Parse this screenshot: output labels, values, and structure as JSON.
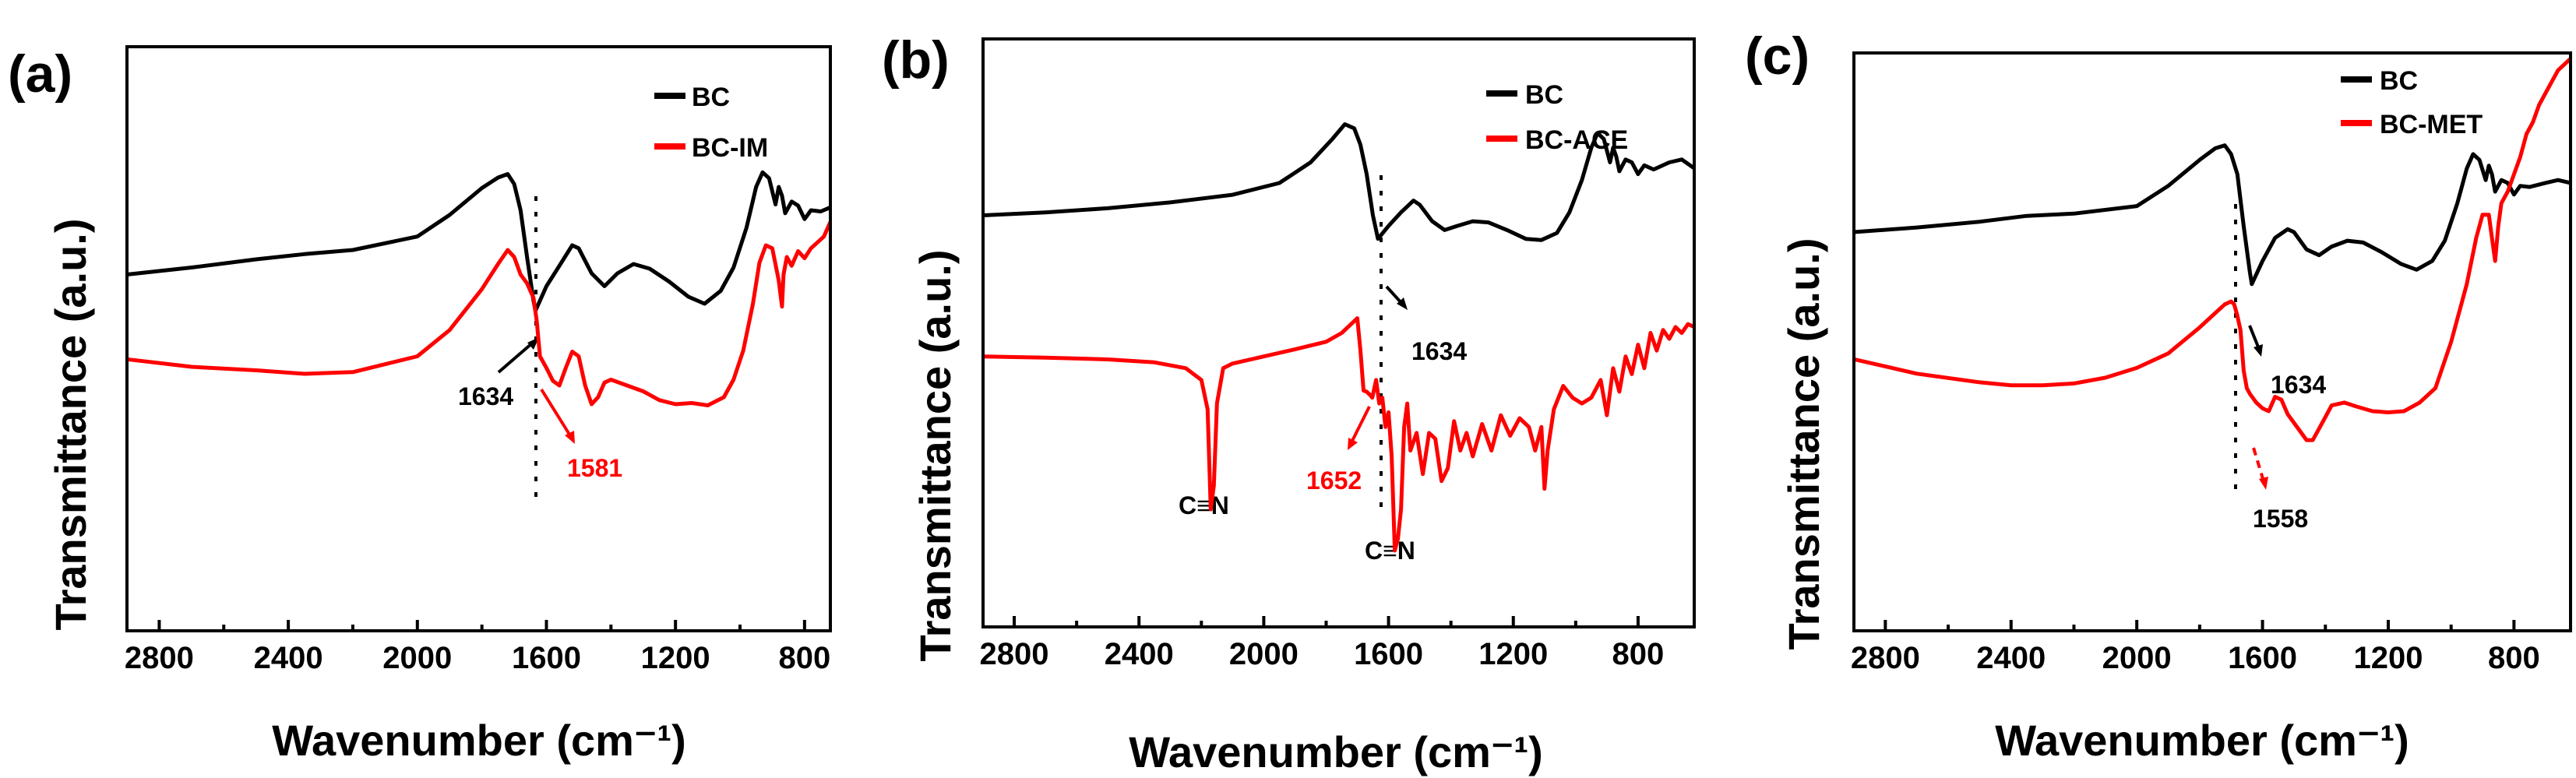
{
  "chart_data": [
    {
      "type": "line",
      "panel_label": "(a)",
      "xlabel": "Wavenumber (cm⁻¹)",
      "ylabel": "Transmittance (a.u.)",
      "xlim": [
        2900,
        720
      ],
      "ylim": [
        0,
        1
      ],
      "xticks": [
        2800,
        2400,
        2000,
        1600,
        1200,
        800
      ],
      "grid": false,
      "legend_position": "top-right",
      "series": [
        {
          "name": "BC",
          "color": "#000000",
          "x": [
            2900,
            2700,
            2500,
            2350,
            2200,
            2000,
            1900,
            1800,
            1750,
            1720,
            1700,
            1680,
            1660,
            1640,
            1634,
            1600,
            1560,
            1520,
            1500,
            1460,
            1420,
            1380,
            1330,
            1280,
            1220,
            1160,
            1110,
            1060,
            1020,
            980,
            950,
            930,
            910,
            890,
            880,
            870,
            860,
            840,
            820,
            800,
            780,
            750,
            720
          ],
          "y": [
            0.61,
            0.622,
            0.636,
            0.645,
            0.652,
            0.675,
            0.712,
            0.758,
            0.776,
            0.782,
            0.765,
            0.72,
            0.64,
            0.565,
            0.548,
            0.59,
            0.625,
            0.66,
            0.655,
            0.612,
            0.59,
            0.612,
            0.628,
            0.62,
            0.598,
            0.572,
            0.56,
            0.582,
            0.622,
            0.69,
            0.76,
            0.785,
            0.775,
            0.73,
            0.76,
            0.745,
            0.715,
            0.735,
            0.728,
            0.705,
            0.72,
            0.718,
            0.725
          ]
        },
        {
          "name": "BC-IM",
          "color": "#ff0000",
          "x": [
            2900,
            2700,
            2500,
            2350,
            2200,
            2000,
            1900,
            1800,
            1750,
            1720,
            1700,
            1680,
            1660,
            1640,
            1630,
            1620,
            1600,
            1580,
            1560,
            1540,
            1520,
            1500,
            1480,
            1460,
            1440,
            1420,
            1400,
            1360,
            1300,
            1250,
            1200,
            1150,
            1100,
            1050,
            1020,
            990,
            960,
            940,
            920,
            900,
            880,
            870,
            865,
            855,
            840,
            820,
            800,
            780,
            760,
            740,
            720
          ],
          "y": [
            0.465,
            0.452,
            0.446,
            0.44,
            0.443,
            0.47,
            0.515,
            0.585,
            0.628,
            0.652,
            0.64,
            0.61,
            0.595,
            0.57,
            0.53,
            0.47,
            0.45,
            0.428,
            0.42,
            0.45,
            0.478,
            0.47,
            0.42,
            0.388,
            0.4,
            0.425,
            0.43,
            0.422,
            0.41,
            0.395,
            0.388,
            0.39,
            0.386,
            0.4,
            0.43,
            0.48,
            0.56,
            0.63,
            0.66,
            0.655,
            0.6,
            0.555,
            0.61,
            0.64,
            0.625,
            0.65,
            0.638,
            0.655,
            0.665,
            0.675,
            0.7
          ]
        }
      ],
      "annotations": [
        {
          "text": "1634",
          "color": "#000000"
        },
        {
          "text": "1581",
          "color": "#ff0000"
        }
      ],
      "guide_line_x": 1620
    },
    {
      "type": "line",
      "panel_label": "(b)",
      "xlabel": "Wavenumber (cm⁻¹)",
      "ylabel": "Transmittance (a.u.)",
      "xlim": [
        2900,
        620
      ],
      "ylim": [
        0,
        1
      ],
      "xticks": [
        2800,
        2400,
        2000,
        1600,
        1200,
        800
      ],
      "grid": false,
      "legend_position": "top-right",
      "series": [
        {
          "name": "BC",
          "color": "#000000",
          "x": [
            2900,
            2700,
            2500,
            2300,
            2100,
            1950,
            1850,
            1780,
            1740,
            1710,
            1690,
            1670,
            1650,
            1634,
            1600,
            1560,
            1520,
            1500,
            1460,
            1420,
            1380,
            1330,
            1280,
            1220,
            1160,
            1110,
            1060,
            1020,
            980,
            950,
            930,
            910,
            890,
            880,
            870,
            860,
            840,
            820,
            800,
            780,
            750,
            700,
            660,
            620
          ],
          "y": [
            0.7,
            0.705,
            0.712,
            0.722,
            0.735,
            0.755,
            0.79,
            0.83,
            0.855,
            0.848,
            0.82,
            0.77,
            0.7,
            0.66,
            0.682,
            0.705,
            0.725,
            0.718,
            0.69,
            0.675,
            0.682,
            0.69,
            0.688,
            0.675,
            0.66,
            0.658,
            0.67,
            0.705,
            0.76,
            0.815,
            0.84,
            0.83,
            0.79,
            0.815,
            0.8,
            0.775,
            0.795,
            0.79,
            0.77,
            0.785,
            0.778,
            0.79,
            0.795,
            0.78
          ]
        },
        {
          "name": "BC-ACE",
          "color": "#ff0000",
          "x": [
            2900,
            2700,
            2500,
            2350,
            2250,
            2200,
            2180,
            2170,
            2160,
            2150,
            2130,
            2100,
            2000,
            1900,
            1800,
            1750,
            1720,
            1700,
            1690,
            1680,
            1670,
            1660,
            1652,
            1640,
            1630,
            1620,
            1610,
            1600,
            1590,
            1580,
            1570,
            1560,
            1550,
            1540,
            1530,
            1510,
            1490,
            1470,
            1450,
            1430,
            1410,
            1390,
            1370,
            1350,
            1330,
            1300,
            1270,
            1240,
            1210,
            1180,
            1150,
            1130,
            1110,
            1100,
            1090,
            1070,
            1040,
            1010,
            980,
            950,
            920,
            900,
            880,
            860,
            840,
            820,
            800,
            780,
            760,
            740,
            720,
            700,
            680,
            660,
            640,
            620
          ],
          "y": [
            0.46,
            0.458,
            0.455,
            0.45,
            0.44,
            0.42,
            0.37,
            0.2,
            0.24,
            0.38,
            0.44,
            0.448,
            0.46,
            0.472,
            0.485,
            0.5,
            0.515,
            0.525,
            0.47,
            0.402,
            0.4,
            0.395,
            0.39,
            0.42,
            0.38,
            0.39,
            0.34,
            0.365,
            0.29,
            0.13,
            0.15,
            0.2,
            0.34,
            0.38,
            0.3,
            0.33,
            0.26,
            0.33,
            0.32,
            0.248,
            0.27,
            0.35,
            0.3,
            0.33,
            0.29,
            0.345,
            0.3,
            0.36,
            0.325,
            0.355,
            0.34,
            0.3,
            0.34,
            0.235,
            0.3,
            0.37,
            0.41,
            0.39,
            0.38,
            0.39,
            0.42,
            0.36,
            0.44,
            0.4,
            0.46,
            0.43,
            0.48,
            0.44,
            0.5,
            0.47,
            0.505,
            0.49,
            0.51,
            0.5,
            0.515,
            0.51
          ]
        }
      ],
      "annotations": [
        {
          "text": "1634",
          "color": "#000000"
        },
        {
          "text": "1652",
          "color": "#ff0000"
        },
        {
          "text": "C≡N",
          "color": "#000000"
        },
        {
          "text": "C≡N",
          "color": "#000000"
        }
      ],
      "guide_line_x": 1620
    },
    {
      "type": "line",
      "panel_label": "(c)",
      "xlabel": "Wavenumber (cm⁻¹)",
      "ylabel": "Transmittance (a.u.)",
      "xlim": [
        2900,
        620
      ],
      "ylim": [
        0,
        1
      ],
      "xticks": [
        2800,
        2400,
        2000,
        1600,
        1200,
        800
      ],
      "grid": false,
      "legend_position": "top-right",
      "series": [
        {
          "name": "BC",
          "color": "#000000",
          "x": [
            2900,
            2700,
            2500,
            2350,
            2200,
            2000,
            1900,
            1800,
            1750,
            1720,
            1700,
            1680,
            1660,
            1640,
            1634,
            1600,
            1560,
            1520,
            1500,
            1460,
            1420,
            1380,
            1330,
            1280,
            1220,
            1160,
            1110,
            1060,
            1020,
            980,
            950,
            930,
            910,
            890,
            880,
            870,
            860,
            840,
            820,
            800,
            780,
            750,
            700,
            660,
            620
          ],
          "y": [
            0.69,
            0.698,
            0.708,
            0.718,
            0.722,
            0.735,
            0.77,
            0.815,
            0.835,
            0.84,
            0.825,
            0.79,
            0.7,
            0.62,
            0.6,
            0.64,
            0.68,
            0.695,
            0.69,
            0.66,
            0.65,
            0.665,
            0.675,
            0.672,
            0.655,
            0.635,
            0.625,
            0.64,
            0.675,
            0.74,
            0.8,
            0.825,
            0.815,
            0.78,
            0.805,
            0.79,
            0.76,
            0.78,
            0.775,
            0.755,
            0.77,
            0.768,
            0.775,
            0.78,
            0.775
          ]
        },
        {
          "name": "BC-MET",
          "color": "#ff0000",
          "x": [
            2900,
            2700,
            2500,
            2400,
            2300,
            2200,
            2100,
            2000,
            1900,
            1800,
            1750,
            1720,
            1700,
            1690,
            1680,
            1670,
            1660,
            1650,
            1640,
            1620,
            1600,
            1580,
            1560,
            1540,
            1520,
            1500,
            1480,
            1460,
            1440,
            1420,
            1400,
            1380,
            1340,
            1300,
            1250,
            1200,
            1150,
            1100,
            1050,
            1000,
            950,
            920,
            900,
            880,
            870,
            860,
            850,
            840,
            820,
            800,
            780,
            760,
            740,
            720,
            700,
            680,
            660,
            640,
            620
          ],
          "y": [
            0.47,
            0.445,
            0.43,
            0.425,
            0.425,
            0.428,
            0.438,
            0.455,
            0.48,
            0.525,
            0.55,
            0.565,
            0.57,
            0.565,
            0.545,
            0.52,
            0.45,
            0.42,
            0.41,
            0.395,
            0.385,
            0.38,
            0.405,
            0.4,
            0.375,
            0.36,
            0.345,
            0.33,
            0.33,
            0.35,
            0.37,
            0.39,
            0.395,
            0.388,
            0.38,
            0.378,
            0.38,
            0.395,
            0.42,
            0.5,
            0.6,
            0.68,
            0.72,
            0.72,
            0.68,
            0.64,
            0.7,
            0.74,
            0.76,
            0.79,
            0.82,
            0.86,
            0.88,
            0.91,
            0.93,
            0.95,
            0.97,
            0.98,
            0.99
          ]
        }
      ],
      "annotations": [
        {
          "text": "1634",
          "color": "#000000"
        },
        {
          "text": "1558",
          "color": "#000000"
        }
      ],
      "guide_line_x": 1620
    }
  ]
}
